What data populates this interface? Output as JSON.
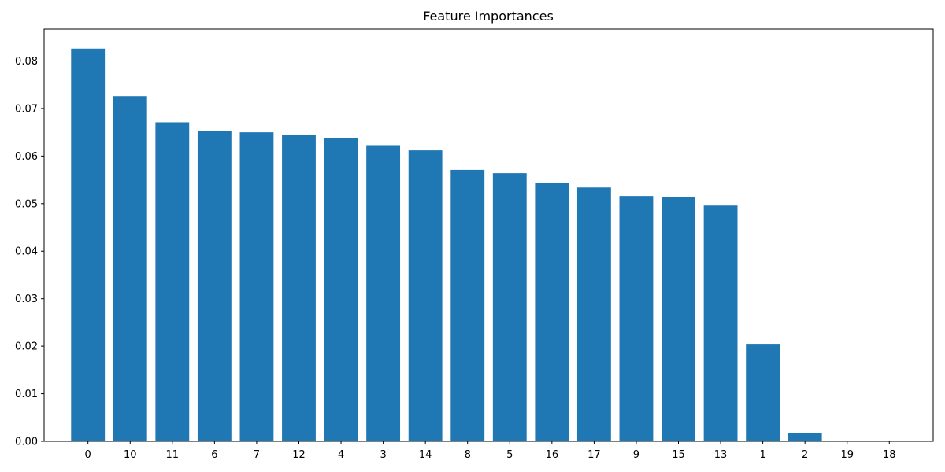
{
  "chart_data": {
    "type": "bar",
    "title": "Feature Importances",
    "xlabel": "",
    "ylabel": "",
    "categories": [
      "0",
      "10",
      "11",
      "6",
      "7",
      "12",
      "4",
      "3",
      "14",
      "8",
      "5",
      "16",
      "17",
      "9",
      "15",
      "13",
      "1",
      "2",
      "19",
      "18"
    ],
    "values": [
      0.0826,
      0.0726,
      0.0671,
      0.0653,
      0.065,
      0.0645,
      0.0638,
      0.0623,
      0.0612,
      0.0571,
      0.0564,
      0.0543,
      0.0534,
      0.0516,
      0.0513,
      0.0496,
      0.0205,
      0.0017,
      0.0,
      0.0
    ],
    "ylim": [
      0,
      0.0867
    ],
    "yticks": [
      "0.00",
      "0.01",
      "0.02",
      "0.03",
      "0.04",
      "0.05",
      "0.06",
      "0.07",
      "0.08"
    ],
    "grid": false,
    "bar_color": "#1f77b4"
  }
}
